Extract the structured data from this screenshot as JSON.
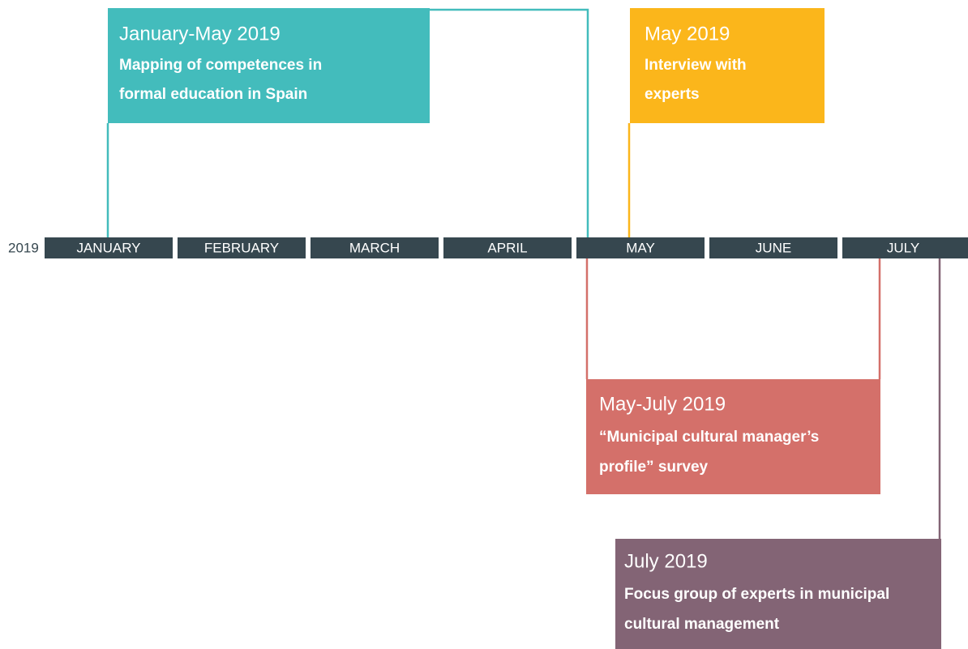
{
  "year": "2019",
  "months": [
    "JANUARY",
    "FEBRUARY",
    "MARCH",
    "APRIL",
    "MAY",
    "JUNE",
    "JULY"
  ],
  "events": [
    {
      "date": "January-May 2019",
      "title_lines": [
        "Mapping of competences in",
        "formal education in Spain"
      ]
    },
    {
      "date": "May 2019",
      "title_lines": [
        "Interview with",
        "experts"
      ]
    },
    {
      "date": "May-July 2019",
      "title_lines": [
        "“Municipal cultural manager’s",
        "profile” survey"
      ]
    },
    {
      "date": "July 2019",
      "title_lines": [
        "Focus group of experts in municipal",
        "cultural management"
      ]
    }
  ]
}
